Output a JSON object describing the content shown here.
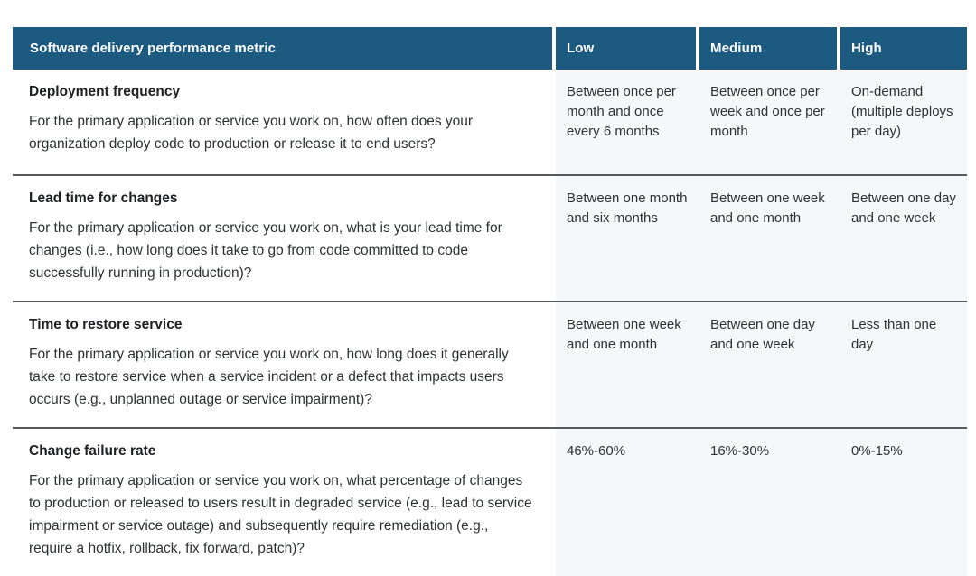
{
  "table": {
    "header": {
      "metric": "Software delivery performance metric",
      "low": "Low",
      "medium": "Medium",
      "high": "High"
    },
    "rows": [
      {
        "title": "Deployment frequency",
        "description": "For the primary application or service you work on, how often does your organization deploy code to production or release it to end users?",
        "low": "Between once per month and once every 6 months",
        "medium": "Between once per week and once per month",
        "high": "On-demand (multiple deploys per day)"
      },
      {
        "title": "Lead time for changes",
        "description": "For the primary application or service you work on, what is your lead time for changes (i.e., how long does it take to go from code committed to code successfully running in production)?",
        "low": "Between one month and six months",
        "medium": "Between one week and one month",
        "high": "Between one day and one week"
      },
      {
        "title": "Time to restore service",
        "description": "For the primary application or service you work on, how long does it generally take to restore service when a service incident or a defect that impacts users occurs (e.g., unplanned outage or service impairment)?",
        "low": "Between one week and one month",
        "medium": "Between one day and one week",
        "high": "Less than one day"
      },
      {
        "title": "Change failure rate",
        "description": "For the primary application or service you work on, what percentage of changes to production or released to users result in degraded service (e.g., lead to service impairment or service outage) and subsequently require remediation (e.g., require a hotfix, rollback, fix forward, patch)?",
        "low": "46%-60%",
        "medium": "16%-30%",
        "high": "0%-15%"
      }
    ],
    "colors": {
      "header_bg": "#1d5a80",
      "header_text": "#ffffff",
      "value_column_bg": "#f6f7f9",
      "body_text": "#2e3134",
      "title_text": "#202124",
      "row_divider": "#57595c"
    }
  }
}
